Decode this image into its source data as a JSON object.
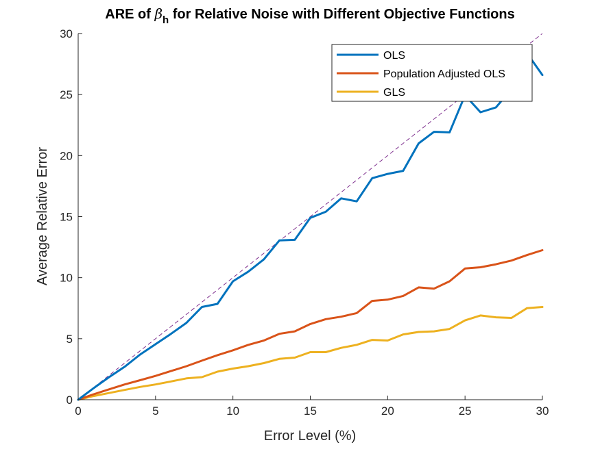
{
  "chart_data": {
    "type": "line",
    "title": {
      "prefix": "ARE of ",
      "symbol": "β",
      "subscript": "h",
      "suffix": " for Relative Noise with Different Objective Functions"
    },
    "xlabel": "Error Level (%)",
    "ylabel": "Average Relative Error",
    "xlim": [
      0,
      30
    ],
    "ylim": [
      0,
      30
    ],
    "xticks": [
      "0",
      "5",
      "10",
      "15",
      "20",
      "25",
      "30"
    ],
    "yticks": [
      "0",
      "5",
      "10",
      "15",
      "20",
      "25",
      "30"
    ],
    "grid": false,
    "legend_position": "top-right",
    "x": [
      0,
      1,
      2,
      3,
      4,
      5,
      6,
      7,
      8,
      9,
      10,
      11,
      12,
      13,
      14,
      15,
      16,
      17,
      18,
      19,
      20,
      21,
      22,
      23,
      24,
      25,
      26,
      27,
      28,
      29,
      30
    ],
    "series": [
      {
        "name": "OLS",
        "color": "#0072BD",
        "values": [
          0,
          0.95,
          1.85,
          2.7,
          3.7,
          4.55,
          5.4,
          6.3,
          7.6,
          7.85,
          9.7,
          10.5,
          11.5,
          13.05,
          13.1,
          14.9,
          15.4,
          16.5,
          16.25,
          18.15,
          18.5,
          18.75,
          21.0,
          21.95,
          21.9,
          24.95,
          23.55,
          23.95,
          25.45,
          28.4,
          26.6
        ]
      },
      {
        "name": "Population Adjusted OLS",
        "color": "#D95319",
        "values": [
          0,
          0.45,
          0.85,
          1.25,
          1.6,
          1.95,
          2.35,
          2.75,
          3.2,
          3.65,
          4.05,
          4.5,
          4.85,
          5.4,
          5.6,
          6.2,
          6.6,
          6.8,
          7.1,
          8.1,
          8.2,
          8.5,
          9.2,
          9.1,
          9.7,
          10.75,
          10.85,
          11.1,
          11.4,
          11.85,
          12.25
        ]
      },
      {
        "name": "GLS",
        "color": "#EDB120",
        "values": [
          0,
          0.3,
          0.55,
          0.8,
          1.05,
          1.25,
          1.5,
          1.75,
          1.85,
          2.3,
          2.55,
          2.75,
          3.0,
          3.35,
          3.45,
          3.9,
          3.9,
          4.25,
          4.5,
          4.9,
          4.85,
          5.35,
          5.55,
          5.6,
          5.8,
          6.5,
          6.9,
          6.75,
          6.7,
          7.5,
          7.6
        ]
      }
    ],
    "reference_line": {
      "x": [
        0,
        30
      ],
      "y": [
        0,
        30
      ],
      "color": "#7E2F8E",
      "style": "dashed"
    }
  }
}
